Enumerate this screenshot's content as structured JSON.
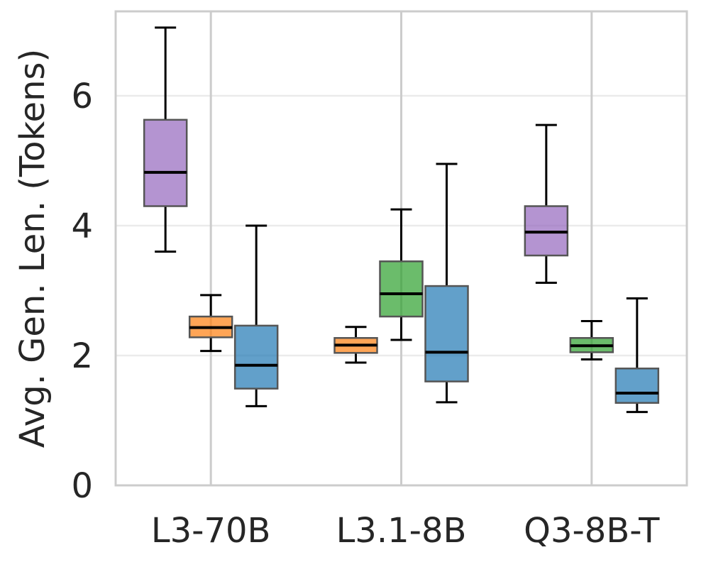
{
  "chart_data": {
    "type": "box",
    "title": "",
    "xlabel": "",
    "ylabel": "Avg. Gen. Len. (Tokens)",
    "ylim": [
      0,
      7.3
    ],
    "yticks": [
      0,
      2,
      4,
      6
    ],
    "grid": true,
    "categories": [
      "L3-70B",
      "L3.1-8B",
      "Q3-8B-T"
    ],
    "groups": [
      {
        "category": "L3-70B",
        "boxes": [
          {
            "color": "#9467bd",
            "whisker_low": 3.6,
            "q1": 4.3,
            "median": 4.82,
            "q3": 5.63,
            "whisker_high": 7.05
          },
          {
            "color": "#ff7f0e",
            "whisker_low": 2.07,
            "q1": 2.28,
            "median": 2.43,
            "q3": 2.6,
            "whisker_high": 2.93
          },
          {
            "color": "#1f77b4",
            "whisker_low": 1.22,
            "q1": 1.49,
            "median": 1.85,
            "q3": 2.46,
            "whisker_high": 4.0
          }
        ]
      },
      {
        "category": "L3.1-8B",
        "boxes": [
          {
            "color": "#ff7f0e",
            "whisker_low": 1.89,
            "q1": 2.04,
            "median": 2.16,
            "q3": 2.27,
            "whisker_high": 2.44
          },
          {
            "color": "#2ca02c",
            "whisker_low": 2.24,
            "q1": 2.6,
            "median": 2.95,
            "q3": 3.45,
            "whisker_high": 4.25
          },
          {
            "color": "#1f77b4",
            "whisker_low": 1.28,
            "q1": 1.6,
            "median": 2.05,
            "q3": 3.07,
            "whisker_high": 4.95
          }
        ]
      },
      {
        "category": "Q3-8B-T",
        "boxes": [
          {
            "color": "#9467bd",
            "whisker_low": 3.12,
            "q1": 3.54,
            "median": 3.9,
            "q3": 4.3,
            "whisker_high": 5.55
          },
          {
            "color": "#2ca02c",
            "whisker_low": 1.94,
            "q1": 2.05,
            "median": 2.15,
            "q3": 2.27,
            "whisker_high": 2.53
          },
          {
            "color": "#1f77b4",
            "whisker_low": 1.13,
            "q1": 1.27,
            "median": 1.42,
            "q3": 1.8,
            "whisker_high": 2.88
          }
        ]
      }
    ]
  }
}
